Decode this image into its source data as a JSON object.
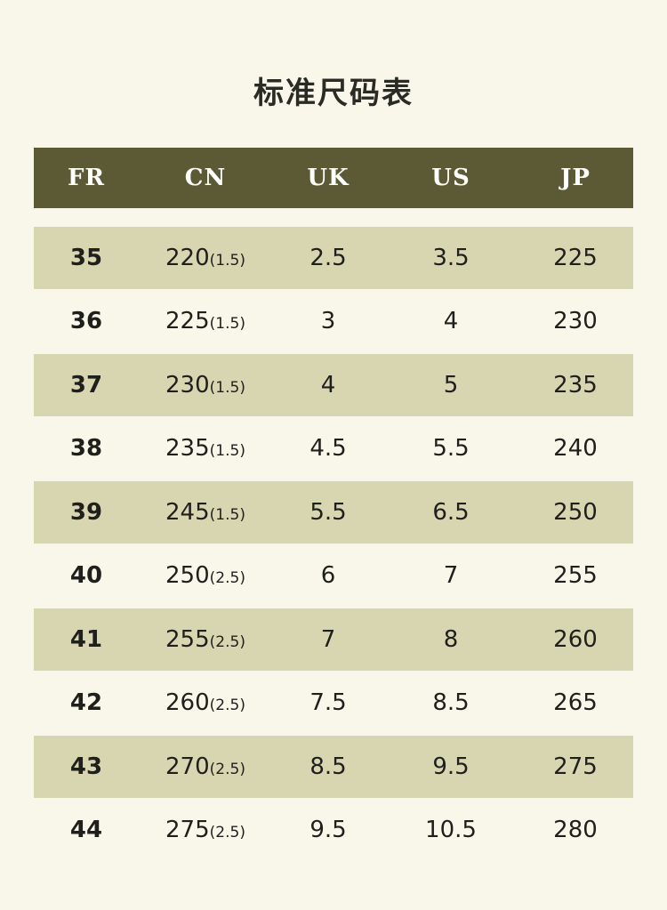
{
  "title": "标准尺码表",
  "headers": [
    "FR",
    "CN",
    "UK",
    "US",
    "JP"
  ],
  "rows": [
    {
      "fr": "35",
      "cn": "220",
      "cn_sub": "(1.5)",
      "uk": "2.5",
      "us": "3.5",
      "jp": "225"
    },
    {
      "fr": "36",
      "cn": "225",
      "cn_sub": "(1.5)",
      "uk": "3",
      "us": "4",
      "jp": "230"
    },
    {
      "fr": "37",
      "cn": "230",
      "cn_sub": "(1.5)",
      "uk": "4",
      "us": "5",
      "jp": "235"
    },
    {
      "fr": "38",
      "cn": "235",
      "cn_sub": "(1.5)",
      "uk": "4.5",
      "us": "5.5",
      "jp": "240"
    },
    {
      "fr": "39",
      "cn": "245",
      "cn_sub": "(1.5)",
      "uk": "5.5",
      "us": "6.5",
      "jp": "250"
    },
    {
      "fr": "40",
      "cn": "250",
      "cn_sub": "(2.5)",
      "uk": "6",
      "us": "7",
      "jp": "255"
    },
    {
      "fr": "41",
      "cn": "255",
      "cn_sub": "(2.5)",
      "uk": "7",
      "us": "8",
      "jp": "260"
    },
    {
      "fr": "42",
      "cn": "260",
      "cn_sub": "(2.5)",
      "uk": "7.5",
      "us": "8.5",
      "jp": "265"
    },
    {
      "fr": "43",
      "cn": "270",
      "cn_sub": "(2.5)",
      "uk": "8.5",
      "us": "9.5",
      "jp": "275"
    },
    {
      "fr": "44",
      "cn": "275",
      "cn_sub": "(2.5)",
      "uk": "9.5",
      "us": "10.5",
      "jp": "280"
    }
  ],
  "colors": {
    "background": "#f8f7ea",
    "header": "#5c5a34",
    "row_shade": "#d8d5b1"
  }
}
